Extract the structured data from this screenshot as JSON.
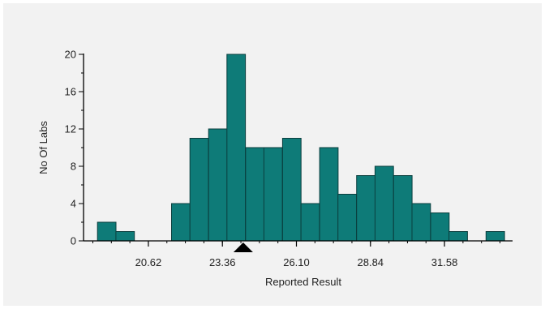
{
  "chart_data": {
    "type": "bar",
    "title": "",
    "xlabel": "Reported Result",
    "ylabel": "No Of Labs",
    "ylim": [
      0,
      20
    ],
    "y_ticks": [
      0,
      4,
      8,
      12,
      16,
      20
    ],
    "x_tick_labels": [
      "20.62",
      "23.36",
      "26.10",
      "28.84",
      "31.58"
    ],
    "x_tick_values": [
      20.62,
      23.36,
      26.1,
      28.84,
      31.58
    ],
    "bin_width": 0.685,
    "xlim": [
      18.22,
      34.1
    ],
    "bins": [
      {
        "x": 19.08,
        "count": 2
      },
      {
        "x": 19.76,
        "count": 1
      },
      {
        "x": 20.45,
        "count": 0
      },
      {
        "x": 21.13,
        "count": 0
      },
      {
        "x": 21.82,
        "count": 4
      },
      {
        "x": 22.5,
        "count": 11
      },
      {
        "x": 23.19,
        "count": 12
      },
      {
        "x": 23.87,
        "count": 20
      },
      {
        "x": 24.56,
        "count": 10
      },
      {
        "x": 25.24,
        "count": 10
      },
      {
        "x": 25.93,
        "count": 11
      },
      {
        "x": 26.61,
        "count": 4
      },
      {
        "x": 27.3,
        "count": 10
      },
      {
        "x": 27.98,
        "count": 5
      },
      {
        "x": 28.67,
        "count": 7
      },
      {
        "x": 29.35,
        "count": 8
      },
      {
        "x": 30.04,
        "count": 7
      },
      {
        "x": 30.72,
        "count": 4
      },
      {
        "x": 31.41,
        "count": 3
      },
      {
        "x": 32.09,
        "count": 1
      },
      {
        "x": 32.78,
        "count": 0
      },
      {
        "x": 33.46,
        "count": 1
      }
    ],
    "marker_value": 24.13,
    "bar_color": "#0e7b78",
    "bar_edge_color": "#0b3f3e",
    "grid": false,
    "legend": "none"
  }
}
